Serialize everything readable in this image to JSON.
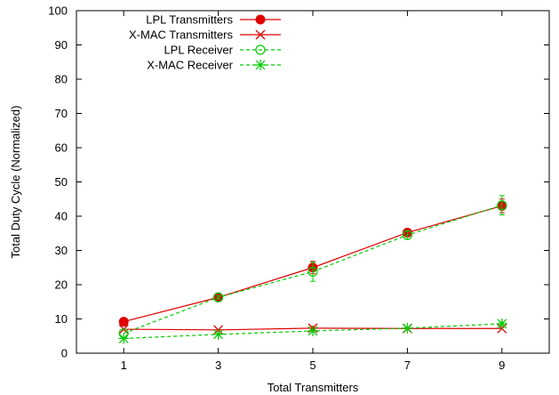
{
  "chart_data": {
    "type": "line",
    "xlabel": "Total Transmitters",
    "ylabel": "Total Duty Cycle (Normalized)",
    "x": [
      1,
      3,
      5,
      7,
      9
    ],
    "xlim": [
      0,
      10
    ],
    "ylim": [
      0,
      100
    ],
    "xticks": [
      "1",
      "3",
      "5",
      "7",
      "9"
    ],
    "yticks": [
      "0",
      "10",
      "20",
      "30",
      "40",
      "50",
      "60",
      "70",
      "80",
      "90",
      "100"
    ],
    "legend_position": "top-left",
    "grid": false,
    "series": [
      {
        "name": "LPL Transmitters",
        "values": [
          9.2,
          16.3,
          25.0,
          35.2,
          43.0
        ],
        "errors": [
          0,
          0.5,
          1.8,
          1.0,
          2.0
        ],
        "color": "#e00000",
        "marker": "filled-circle",
        "dash": "solid"
      },
      {
        "name": "X-MAC Transmitters",
        "values": [
          7.0,
          6.8,
          7.3,
          7.2,
          7.2
        ],
        "errors": [
          0,
          0,
          0.5,
          0,
          0
        ],
        "color": "#e00000",
        "marker": "x",
        "dash": "solid"
      },
      {
        "name": "LPL Receiver",
        "values": [
          5.8,
          16.3,
          23.8,
          34.5,
          43.2
        ],
        "errors": [
          0,
          0.5,
          2.8,
          1.2,
          2.8
        ],
        "color": "#00cc00",
        "marker": "open-circle",
        "dash": "dashed"
      },
      {
        "name": "X-MAC Receiver",
        "values": [
          4.3,
          5.5,
          6.5,
          7.3,
          8.6
        ],
        "errors": [
          0,
          0,
          0,
          0,
          0.5
        ],
        "color": "#00cc00",
        "marker": "star",
        "dash": "dashed"
      }
    ]
  }
}
